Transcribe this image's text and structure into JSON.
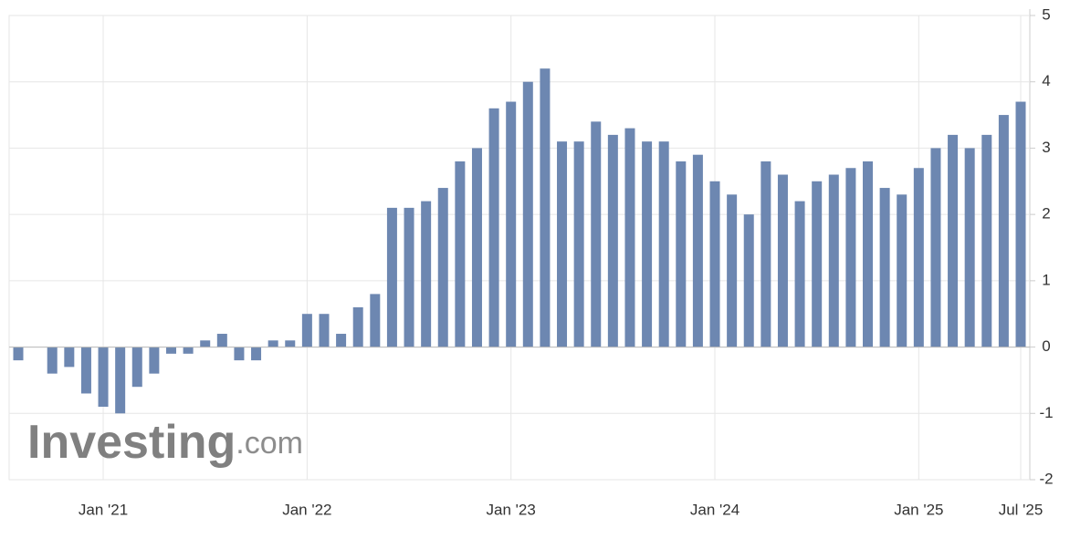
{
  "chart_data": {
    "type": "bar",
    "categories": [
      null,
      null,
      null,
      null,
      null,
      "Jan '21",
      null,
      null,
      null,
      null,
      null,
      null,
      null,
      null,
      null,
      null,
      null,
      "Jan '22",
      null,
      null,
      null,
      null,
      null,
      null,
      null,
      null,
      null,
      null,
      null,
      "Jan '23",
      null,
      null,
      null,
      null,
      null,
      null,
      null,
      null,
      null,
      null,
      null,
      "Jan '24",
      null,
      null,
      null,
      null,
      null,
      null,
      null,
      null,
      null,
      null,
      null,
      "Jan '25",
      null,
      null,
      null,
      null,
      null,
      "Jul '25"
    ],
    "values": [
      -0.2,
      0,
      -0.4,
      -0.3,
      -0.7,
      -0.9,
      -1.0,
      -0.6,
      -0.4,
      -0.1,
      -0.1,
      0.1,
      0.2,
      -0.2,
      -0.2,
      0.1,
      0.1,
      0.5,
      0.5,
      0.2,
      0.6,
      0.8,
      2.1,
      2.1,
      2.2,
      2.4,
      2.8,
      3.0,
      3.6,
      3.7,
      4.0,
      4.2,
      3.1,
      3.1,
      3.4,
      3.2,
      3.3,
      3.1,
      3.1,
      2.8,
      2.9,
      2.5,
      2.3,
      2.0,
      2.8,
      2.6,
      2.2,
      2.5,
      2.6,
      2.7,
      2.8,
      2.4,
      2.3,
      2.7,
      3.0,
      3.2,
      3.0,
      3.2,
      3.5,
      3.7
    ],
    "color": "#6d87b1",
    "ylim": [
      -2,
      5
    ],
    "yticks": [
      -2,
      -1,
      0,
      1,
      2,
      3,
      4,
      5
    ],
    "grid": true,
    "watermark": {
      "brand": "Investing",
      "suffix": ".com"
    }
  }
}
